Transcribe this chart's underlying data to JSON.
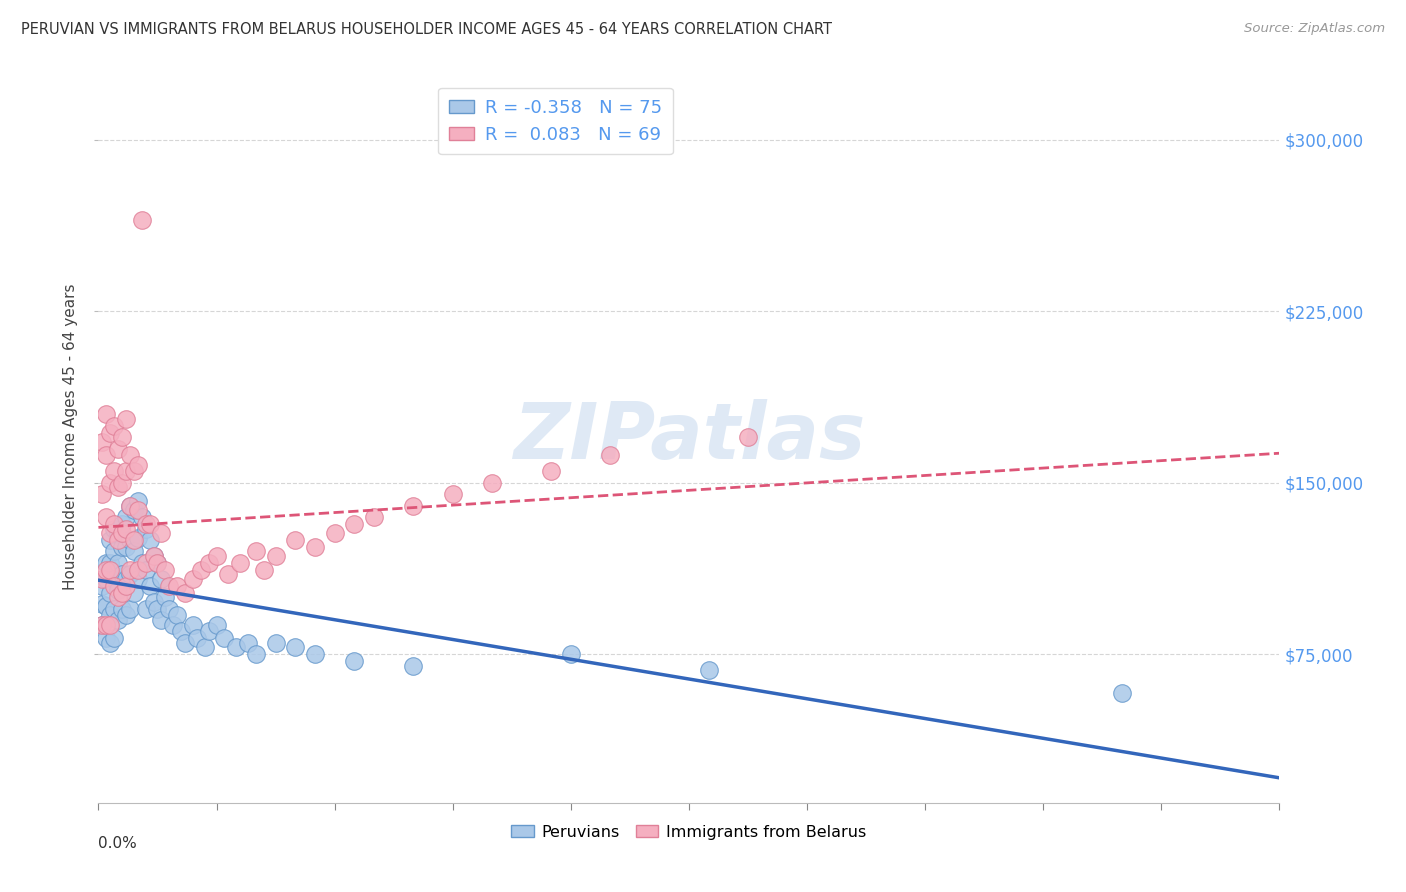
{
  "title": "PERUVIAN VS IMMIGRANTS FROM BELARUS HOUSEHOLDER INCOME AGES 45 - 64 YEARS CORRELATION CHART",
  "source": "Source: ZipAtlas.com",
  "ylabel": "Householder Income Ages 45 - 64 years",
  "ytick_labels": [
    "$75,000",
    "$150,000",
    "$225,000",
    "$300,000"
  ],
  "ytick_values": [
    75000,
    150000,
    225000,
    300000
  ],
  "ymin": 10000,
  "ymax": 330000,
  "xmin": 0.0,
  "xmax": 0.3,
  "peruvian_color": "#aac8e8",
  "belarus_color": "#f5afc0",
  "peruvian_edge": "#6699cc",
  "belarus_edge": "#e08098",
  "peruvian_line_color": "#3366bb",
  "belarus_line_color": "#dd5577",
  "r_peruvian": -0.358,
  "n_peruvian": 75,
  "r_belarus": 0.083,
  "n_belarus": 69,
  "legend_label_peruvian": "Peruvians",
  "legend_label_belarus": "Immigrants from Belarus",
  "watermark": "ZIPatlas",
  "grid_color": "#cccccc",
  "background": "#ffffff",
  "title_color": "#333333",
  "source_color": "#999999",
  "ytick_color": "#5599ee",
  "xtick_color": "#333333",
  "peruvian_x": [
    0.001,
    0.001,
    0.001,
    0.002,
    0.002,
    0.002,
    0.002,
    0.003,
    0.003,
    0.003,
    0.003,
    0.003,
    0.004,
    0.004,
    0.004,
    0.004,
    0.004,
    0.005,
    0.005,
    0.005,
    0.005,
    0.006,
    0.006,
    0.006,
    0.006,
    0.007,
    0.007,
    0.007,
    0.007,
    0.008,
    0.008,
    0.008,
    0.008,
    0.009,
    0.009,
    0.009,
    0.01,
    0.01,
    0.01,
    0.011,
    0.011,
    0.012,
    0.012,
    0.012,
    0.013,
    0.013,
    0.014,
    0.014,
    0.015,
    0.015,
    0.016,
    0.016,
    0.017,
    0.018,
    0.019,
    0.02,
    0.021,
    0.022,
    0.024,
    0.025,
    0.027,
    0.028,
    0.03,
    0.032,
    0.035,
    0.038,
    0.04,
    0.045,
    0.05,
    0.055,
    0.065,
    0.08,
    0.12,
    0.155,
    0.26
  ],
  "peruvian_y": [
    105000,
    97000,
    88000,
    115000,
    108000,
    96000,
    82000,
    125000,
    115000,
    102000,
    92000,
    80000,
    130000,
    120000,
    108000,
    95000,
    82000,
    128000,
    115000,
    103000,
    90000,
    132000,
    122000,
    110000,
    95000,
    135000,
    122000,
    108000,
    92000,
    140000,
    125000,
    110000,
    95000,
    138000,
    120000,
    102000,
    142000,
    126000,
    108000,
    135000,
    115000,
    130000,
    112000,
    95000,
    125000,
    105000,
    118000,
    98000,
    115000,
    95000,
    108000,
    90000,
    100000,
    95000,
    88000,
    92000,
    85000,
    80000,
    88000,
    82000,
    78000,
    85000,
    88000,
    82000,
    78000,
    80000,
    75000,
    80000,
    78000,
    75000,
    72000,
    70000,
    75000,
    68000,
    58000
  ],
  "belarus_x": [
    0.001,
    0.001,
    0.001,
    0.001,
    0.002,
    0.002,
    0.002,
    0.002,
    0.002,
    0.003,
    0.003,
    0.003,
    0.003,
    0.003,
    0.004,
    0.004,
    0.004,
    0.004,
    0.005,
    0.005,
    0.005,
    0.005,
    0.006,
    0.006,
    0.006,
    0.006,
    0.007,
    0.007,
    0.007,
    0.007,
    0.008,
    0.008,
    0.008,
    0.009,
    0.009,
    0.01,
    0.01,
    0.01,
    0.011,
    0.012,
    0.012,
    0.013,
    0.014,
    0.015,
    0.016,
    0.017,
    0.018,
    0.02,
    0.022,
    0.024,
    0.026,
    0.028,
    0.03,
    0.033,
    0.036,
    0.04,
    0.042,
    0.045,
    0.05,
    0.055,
    0.06,
    0.065,
    0.07,
    0.08,
    0.09,
    0.1,
    0.115,
    0.13,
    0.165
  ],
  "belarus_y": [
    108000,
    145000,
    168000,
    88000,
    180000,
    162000,
    135000,
    112000,
    88000,
    172000,
    150000,
    128000,
    112000,
    88000,
    175000,
    155000,
    132000,
    105000,
    165000,
    148000,
    125000,
    100000,
    170000,
    150000,
    128000,
    102000,
    178000,
    155000,
    130000,
    105000,
    162000,
    140000,
    112000,
    155000,
    125000,
    158000,
    138000,
    112000,
    265000,
    132000,
    115000,
    132000,
    118000,
    115000,
    128000,
    112000,
    105000,
    105000,
    102000,
    108000,
    112000,
    115000,
    118000,
    110000,
    115000,
    120000,
    112000,
    118000,
    125000,
    122000,
    128000,
    132000,
    135000,
    140000,
    145000,
    150000,
    155000,
    162000,
    170000
  ]
}
